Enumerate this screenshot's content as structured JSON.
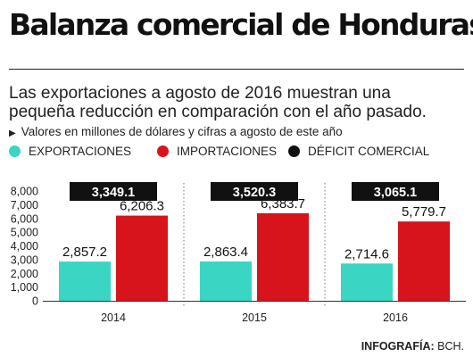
{
  "title": "Balanza comercial de Honduras",
  "subtitle": "Las exportaciones a agosto de 2016 muestran una pequeña reducción en comparación con el año pasado.",
  "note": "Valores en millones de dólares y cifras a agosto de este año",
  "source": {
    "label": "INFOGRAFÍA:",
    "value": "BCH."
  },
  "colors": {
    "exportaciones": "#3ad6c3",
    "importaciones": "#d7141c",
    "deficit": "#111111"
  },
  "chart_data": {
    "type": "bar",
    "categories": [
      "2014",
      "2015",
      "2016"
    ],
    "series": [
      {
        "name": "EXPORTACIONES",
        "values": [
          2857.2,
          2863.4,
          2714.6
        ],
        "labels": [
          "2,857.2",
          "2,863.4",
          "2,714.6"
        ]
      },
      {
        "name": "IMPORTACIONES",
        "values": [
          6206.3,
          6383.7,
          5779.7
        ],
        "labels": [
          "6,206.3",
          "6,383.7",
          "5,779.7"
        ]
      },
      {
        "name": "DÉFICIT COMERCIAL",
        "values": [
          3349.1,
          3520.3,
          3065.1
        ],
        "labels": [
          "3,349.1",
          "3,520.3",
          "3,065.1"
        ]
      }
    ],
    "yticks": [
      0,
      1000,
      2000,
      3000,
      4000,
      5000,
      6000,
      7000,
      8000
    ],
    "ytick_labels": [
      "0",
      "1,000",
      "2,000",
      "3,000",
      "4,000",
      "5,000",
      "6,000",
      "7,000",
      "8,000"
    ],
    "ylim": [
      0,
      8000
    ],
    "grid": false,
    "legend_position": "top"
  }
}
